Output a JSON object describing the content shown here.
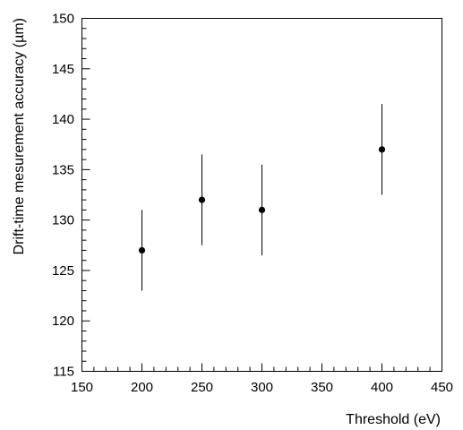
{
  "chart_data": {
    "type": "scatter",
    "xlabel": "Threshold (eV)",
    "ylabel": "Drift-time mesurement accuracy (µm)",
    "xlim": [
      150,
      450
    ],
    "ylim": [
      115,
      150
    ],
    "x_ticks": [
      150,
      200,
      250,
      300,
      350,
      400,
      450
    ],
    "y_ticks": [
      115,
      120,
      125,
      130,
      135,
      140,
      145,
      150
    ],
    "x_minor_step": 10,
    "y_minor_step": 1,
    "grid": false,
    "colors": {
      "marker": "#000000",
      "frame": "#000000"
    },
    "series": [
      {
        "marker": "filled-circle",
        "points": [
          {
            "x": 200,
            "y": 127,
            "y_low": 123,
            "y_high": 131
          },
          {
            "x": 250,
            "y": 132,
            "y_low": 127.5,
            "y_high": 136.5
          },
          {
            "x": 300,
            "y": 131,
            "y_low": 126.5,
            "y_high": 135.5
          },
          {
            "x": 400,
            "y": 137,
            "y_low": 132.5,
            "y_high": 141.5
          }
        ]
      }
    ]
  }
}
